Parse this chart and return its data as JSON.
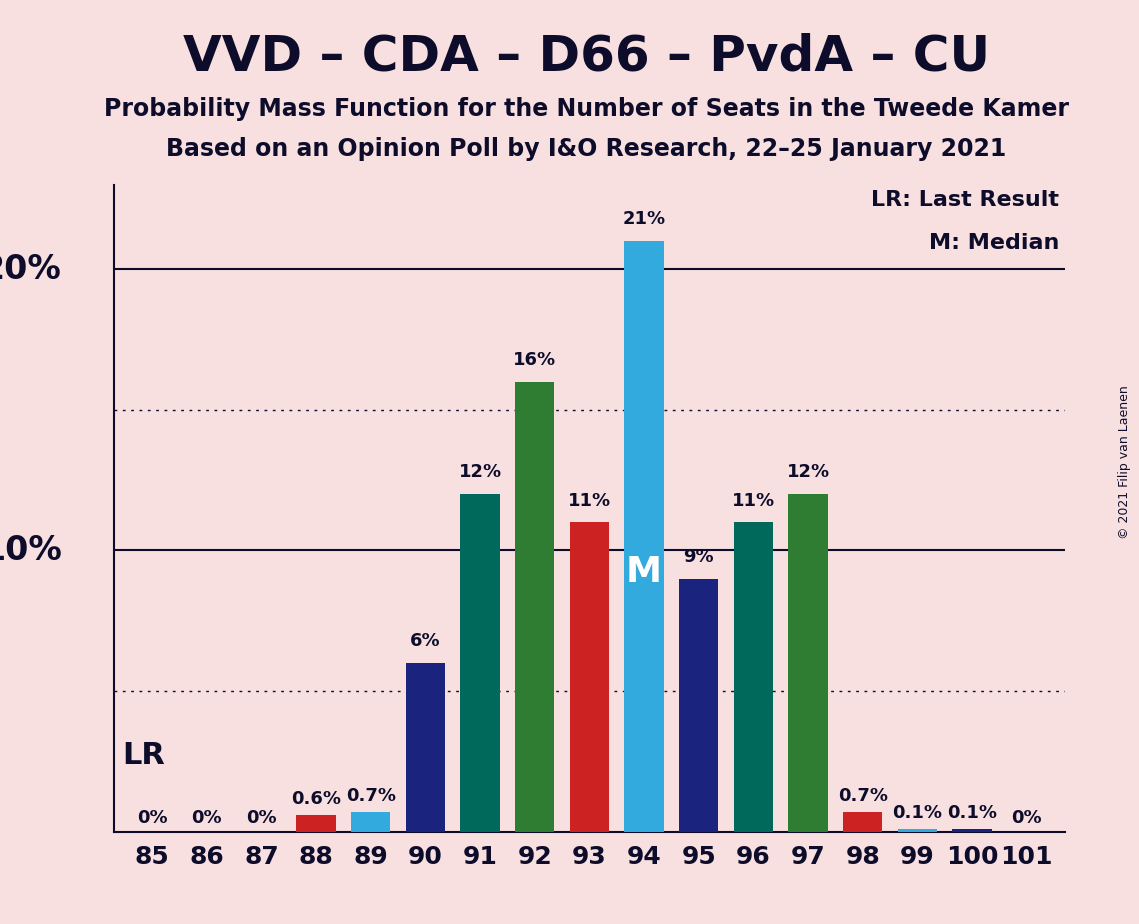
{
  "title": "VVD – CDA – D66 – PvdA – CU",
  "subtitle1": "Probability Mass Function for the Number of Seats in the Tweede Kamer",
  "subtitle2": "Based on an Opinion Poll by I&O Research, 22–25 January 2021",
  "copyright": "© 2021 Filip van Laenen",
  "background_color": "#f8e0e0",
  "seats": [
    85,
    86,
    87,
    88,
    89,
    90,
    91,
    92,
    93,
    94,
    95,
    96,
    97,
    98,
    99,
    100,
    101
  ],
  "values": [
    0.0,
    0.0,
    0.0,
    0.6,
    0.7,
    6.0,
    12.0,
    16.0,
    11.0,
    21.0,
    9.0,
    11.0,
    12.0,
    0.7,
    0.1,
    0.1,
    0.0
  ],
  "colors": [
    "#f8e0e0",
    "#f8e0e0",
    "#f8e0e0",
    "#cc2222",
    "#33aadd",
    "#1a237e",
    "#00695c",
    "#2e7d32",
    "#cc2222",
    "#33aadd",
    "#1a237e",
    "#00695c",
    "#2e7d32",
    "#cc2222",
    "#33aadd",
    "#1a237e",
    "#f8e0e0"
  ],
  "labels": [
    "0%",
    "0%",
    "0%",
    "0.6%",
    "0.7%",
    "6%",
    "12%",
    "16%",
    "11%",
    "21%",
    "9%",
    "11%",
    "12%",
    "0.7%",
    "0.1%",
    "0.1%",
    "0%"
  ],
  "lr_seat": 88,
  "median_seat": 94,
  "ylim": [
    0,
    23
  ],
  "grid_solid": [
    10.0,
    20.0
  ],
  "grid_dotted": [
    5.0,
    15.0
  ],
  "legend_lr": "LR: Last Result",
  "legend_m": "M: Median",
  "lr_label": "LR",
  "m_label": "M",
  "title_color": "#0d0d2b",
  "bar_width": 0.72
}
